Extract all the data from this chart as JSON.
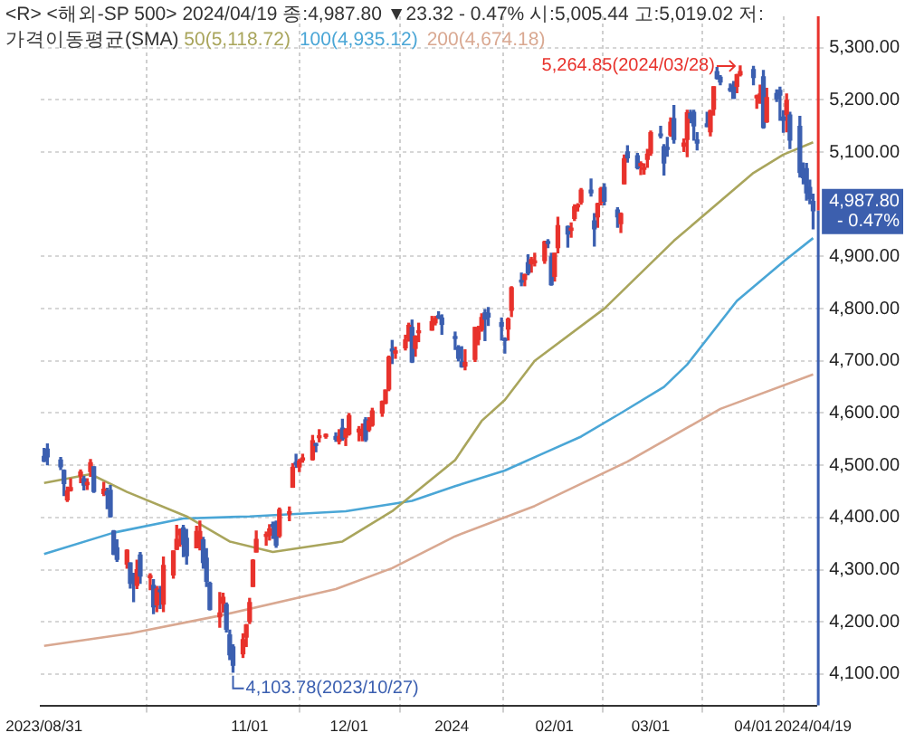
{
  "chart_data": {
    "type": "candlestick",
    "title": "<R> <해외-SP 500> 2024/04/19 종:4,987.80 ▼23.32 - 0.47% 시:5,005.44 고:5,019.02 저:",
    "subtitle": "가격이동평균(SMA)",
    "legend": "top left",
    "grid": true,
    "xlim": [
      "2023-08-30",
      "2024-04-20"
    ],
    "xticks": [
      {
        "value": "2023-08-31",
        "label": "2023/08/31"
      },
      {
        "value": "2023-11-01",
        "label": "11/01"
      },
      {
        "value": "2023-12-01",
        "label": "12/01"
      },
      {
        "value": "2024-01-01",
        "label": "2024"
      },
      {
        "value": "2024-02-01",
        "label": "02/01"
      },
      {
        "value": "2024-03-01",
        "label": "03/01"
      },
      {
        "value": "2024-04-01",
        "label": "04/01"
      },
      {
        "value": "2024-04-19",
        "label": "2024/04/19"
      }
    ],
    "ylim": [
      4040,
      5360
    ],
    "yticks": [
      {
        "value": 4100,
        "label": "4,100.00"
      },
      {
        "value": 4200,
        "label": "4,200.00"
      },
      {
        "value": 4300,
        "label": "4,300.00"
      },
      {
        "value": 4400,
        "label": "4,400.00"
      },
      {
        "value": 4500,
        "label": "4,500.00"
      },
      {
        "value": 4600,
        "label": "4,600.00"
      },
      {
        "value": 4700,
        "label": "4,700.00"
      },
      {
        "value": 4800,
        "label": "4,800.00"
      },
      {
        "value": 4900,
        "label": "4,900.00"
      },
      {
        "value": 5100,
        "label": "5,100.00"
      },
      {
        "value": 5200,
        "label": "5,200.00"
      },
      {
        "value": 5300,
        "label": "5,300.00"
      }
    ],
    "x": [
      "2023-08-31",
      "2023-09-01",
      "2023-09-05",
      "2023-09-06",
      "2023-09-07",
      "2023-09-08",
      "2023-09-11",
      "2023-09-12",
      "2023-09-13",
      "2023-09-14",
      "2023-09-15",
      "2023-09-18",
      "2023-09-19",
      "2023-09-20",
      "2023-09-21",
      "2023-09-22",
      "2023-09-25",
      "2023-09-26",
      "2023-09-27",
      "2023-09-28",
      "2023-09-29",
      "2023-10-02",
      "2023-10-03",
      "2023-10-04",
      "2023-10-05",
      "2023-10-06",
      "2023-10-09",
      "2023-10-10",
      "2023-10-11",
      "2023-10-12",
      "2023-10-13",
      "2023-10-16",
      "2023-10-17",
      "2023-10-18",
      "2023-10-19",
      "2023-10-20",
      "2023-10-23",
      "2023-10-24",
      "2023-10-25",
      "2023-10-26",
      "2023-10-27",
      "2023-10-30",
      "2023-10-31",
      "2023-11-01",
      "2023-11-02",
      "2023-11-03",
      "2023-11-06",
      "2023-11-07",
      "2023-11-08",
      "2023-11-09",
      "2023-11-10",
      "2023-11-13",
      "2023-11-14",
      "2023-11-15",
      "2023-11-16",
      "2023-11-17",
      "2023-11-20",
      "2023-11-21",
      "2023-11-22",
      "2023-11-24",
      "2023-11-27",
      "2023-11-28",
      "2023-11-29",
      "2023-11-30",
      "2023-12-01",
      "2023-12-04",
      "2023-12-05",
      "2023-12-06",
      "2023-12-07",
      "2023-12-08",
      "2023-12-11",
      "2023-12-12",
      "2023-12-13",
      "2023-12-14",
      "2023-12-15",
      "2023-12-18",
      "2023-12-19",
      "2023-12-20",
      "2023-12-21",
      "2023-12-22",
      "2023-12-26",
      "2023-12-27",
      "2023-12-28",
      "2023-12-29",
      "2024-01-02",
      "2024-01-03",
      "2024-01-04",
      "2024-01-05",
      "2024-01-08",
      "2024-01-09",
      "2024-01-10",
      "2024-01-11",
      "2024-01-12",
      "2024-01-16",
      "2024-01-17",
      "2024-01-18",
      "2024-01-19",
      "2024-01-22",
      "2024-01-23",
      "2024-01-24",
      "2024-01-25",
      "2024-01-26",
      "2024-01-29",
      "2024-01-30",
      "2024-01-31",
      "2024-02-01",
      "2024-02-02",
      "2024-02-05",
      "2024-02-06",
      "2024-02-07",
      "2024-02-08",
      "2024-02-09",
      "2024-02-12",
      "2024-02-13",
      "2024-02-14",
      "2024-02-15",
      "2024-02-16",
      "2024-02-20",
      "2024-02-21",
      "2024-02-22",
      "2024-02-23",
      "2024-02-26",
      "2024-02-27",
      "2024-02-28",
      "2024-02-29",
      "2024-03-01",
      "2024-03-04",
      "2024-03-05",
      "2024-03-06",
      "2024-03-07",
      "2024-03-08",
      "2024-03-11",
      "2024-03-12",
      "2024-03-13",
      "2024-03-14",
      "2024-03-15",
      "2024-03-18",
      "2024-03-19",
      "2024-03-20",
      "2024-03-21",
      "2024-03-22",
      "2024-03-25",
      "2024-03-26",
      "2024-03-27",
      "2024-03-28",
      "2024-04-01",
      "2024-04-02",
      "2024-04-03",
      "2024-04-04",
      "2024-04-05",
      "2024-04-08",
      "2024-04-09",
      "2024-04-10",
      "2024-04-11",
      "2024-04-12",
      "2024-04-15",
      "2024-04-16",
      "2024-04-17",
      "2024-04-18",
      "2024-04-19"
    ],
    "ohlc": [
      [
        4517,
        4532,
        4507,
        4508
      ],
      [
        4531,
        4541,
        4501,
        4516
      ],
      [
        4510,
        4515,
        4492,
        4497
      ],
      [
        4490,
        4491,
        4442,
        4465
      ],
      [
        4434,
        4458,
        4431,
        4451
      ],
      [
        4452,
        4474,
        4451,
        4457
      ],
      [
        4480,
        4491,
        4467,
        4487
      ],
      [
        4474,
        4479,
        4453,
        4462
      ],
      [
        4463,
        4474,
        4454,
        4467
      ],
      [
        4488,
        4511,
        4479,
        4505
      ],
      [
        4497,
        4497,
        4448,
        4450
      ],
      [
        4446,
        4467,
        4442,
        4454
      ],
      [
        4450,
        4456,
        4417,
        4444
      ],
      [
        4452,
        4461,
        4401,
        4402
      ],
      [
        4374,
        4375,
        4329,
        4330
      ],
      [
        4342,
        4357,
        4316,
        4320
      ],
      [
        4311,
        4338,
        4303,
        4337
      ],
      [
        4313,
        4313,
        4265,
        4274
      ],
      [
        4282,
        4293,
        4239,
        4274
      ],
      [
        4270,
        4318,
        4264,
        4300
      ],
      [
        4328,
        4333,
        4274,
        4288
      ],
      [
        4285,
        4292,
        4262,
        4288
      ],
      [
        4270,
        4281,
        4216,
        4229
      ],
      [
        4233,
        4268,
        4220,
        4263
      ],
      [
        4260,
        4268,
        4226,
        4258
      ],
      [
        4234,
        4324,
        4220,
        4308
      ],
      [
        4290,
        4336,
        4284,
        4336
      ],
      [
        4339,
        4385,
        4339,
        4358
      ],
      [
        4367,
        4378,
        4345,
        4376
      ],
      [
        4380,
        4385,
        4325,
        4349
      ],
      [
        4360,
        4377,
        4311,
        4327
      ],
      [
        4342,
        4383,
        4342,
        4373
      ],
      [
        4345,
        4393,
        4338,
        4373
      ],
      [
        4357,
        4362,
        4303,
        4314
      ],
      [
        4322,
        4340,
        4268,
        4278
      ],
      [
        4274,
        4276,
        4223,
        4224
      ],
      [
        4210,
        4256,
        4190,
        4217
      ],
      [
        4236,
        4255,
        4219,
        4247
      ],
      [
        4233,
        4236,
        4181,
        4186
      ],
      [
        4175,
        4184,
        4128,
        4137
      ],
      [
        4152,
        4156,
        4103.78,
        4117
      ],
      [
        4139,
        4177,
        4132,
        4166
      ],
      [
        4171,
        4195,
        4153,
        4194
      ],
      [
        4201,
        4245,
        4197,
        4237
      ],
      [
        4268,
        4319,
        4268,
        4318
      ],
      [
        4334,
        4374,
        4334,
        4358
      ],
      [
        4364,
        4372,
        4347,
        4365
      ],
      [
        4366,
        4386,
        4357,
        4378
      ],
      [
        4385,
        4391,
        4360,
        4383
      ],
      [
        4391,
        4393,
        4343,
        4347
      ],
      [
        4365,
        4418,
        4362,
        4415
      ],
      [
        4407,
        4420,
        4394,
        4411
      ],
      [
        4458,
        4503,
        4458,
        4496
      ],
      [
        4505,
        4521,
        4496,
        4502
      ],
      [
        4497,
        4511,
        4488,
        4508
      ],
      [
        4510,
        4521,
        4506,
        4514
      ],
      [
        4511,
        4557,
        4510,
        4547
      ],
      [
        4539,
        4542,
        4526,
        4538
      ],
      [
        4553,
        4568,
        4545,
        4556
      ],
      [
        4555,
        4560,
        4552,
        4559
      ],
      [
        4555,
        4562,
        4546,
        4550
      ],
      [
        4546,
        4568,
        4541,
        4555
      ],
      [
        4571,
        4588,
        4548,
        4551
      ],
      [
        4554,
        4570,
        4538,
        4568
      ],
      [
        4560,
        4599,
        4558,
        4595
      ],
      [
        4564,
        4574,
        4547,
        4569
      ],
      [
        4557,
        4579,
        4547,
        4567
      ],
      [
        4587,
        4591,
        4546,
        4549
      ],
      [
        4568,
        4591,
        4565,
        4585
      ],
      [
        4577,
        4609,
        4575,
        4604
      ],
      [
        4600,
        4623,
        4594,
        4622
      ],
      [
        4619,
        4644,
        4618,
        4644
      ],
      [
        4646,
        4709,
        4643,
        4707
      ],
      [
        4721,
        4739,
        4695,
        4719
      ],
      [
        4715,
        4726,
        4705,
        4719
      ],
      [
        4725,
        4749,
        4721,
        4740
      ],
      [
        4743,
        4772,
        4738,
        4768
      ],
      [
        4764,
        4778,
        4697,
        4698
      ],
      [
        4724,
        4748,
        4709,
        4747
      ],
      [
        4754,
        4772,
        4737,
        4755
      ],
      [
        4759,
        4785,
        4759,
        4775
      ],
      [
        4773,
        4785,
        4769,
        4781
      ],
      [
        4786,
        4794,
        4781,
        4783
      ],
      [
        4782,
        4788,
        4751,
        4770
      ],
      [
        4746,
        4755,
        4722,
        4743
      ],
      [
        4726,
        4729,
        4700,
        4705
      ],
      [
        4698,
        4727,
        4688,
        4689
      ],
      [
        4690,
        4721,
        4683,
        4697
      ],
      [
        4703,
        4764,
        4699,
        4764
      ],
      [
        4741,
        4766,
        4731,
        4757
      ],
      [
        4760,
        4790,
        4757,
        4783
      ],
      [
        4792,
        4798,
        4739,
        4780
      ],
      [
        4791,
        4802,
        4768,
        4784
      ],
      [
        4773,
        4782,
        4740,
        4766
      ],
      [
        4740,
        4744,
        4715,
        4739
      ],
      [
        4761,
        4782,
        4740,
        4780
      ],
      [
        4797,
        4842,
        4785,
        4840
      ],
      [
        4854,
        4868,
        4844,
        4851
      ],
      [
        4856,
        4866,
        4844,
        4865
      ],
      [
        4888,
        4903,
        4865,
        4868
      ],
      [
        4886,
        4898,
        4870,
        4894
      ],
      [
        4888,
        4906,
        4882,
        4891
      ],
      [
        4892,
        4929,
        4887,
        4928
      ],
      [
        4926,
        4932,
        4917,
        4925
      ],
      [
        4899,
        4906,
        4845,
        4846
      ],
      [
        4862,
        4906,
        4853,
        4906
      ],
      [
        4917,
        4975,
        4907,
        4959
      ],
      [
        4957,
        4958,
        4918,
        4943
      ],
      [
        4950,
        4964,
        4937,
        4954
      ],
      [
        4973,
        4999,
        4969,
        4995
      ],
      [
        4995,
        5001,
        4987,
        4998
      ],
      [
        5004,
        5030,
        5000,
        5027
      ],
      [
        5027,
        5048,
        5016,
        5022
      ],
      [
        4968,
        4982,
        4920,
        4953
      ],
      [
        4976,
        5002,
        4956,
        5001
      ],
      [
        5004,
        5032,
        4999,
        5030
      ],
      [
        5032,
        5039,
        4999,
        5006
      ],
      [
        4989,
        4993,
        4956,
        4976
      ],
      [
        4963,
        4983,
        4946,
        4982
      ],
      [
        5039,
        5094,
        5039,
        5087
      ],
      [
        5100,
        5112,
        5081,
        5089
      ],
      [
        5093,
        5097,
        5068,
        5070
      ],
      [
        5074,
        5081,
        5057,
        5078
      ],
      [
        5067,
        5077,
        5058,
        5070
      ],
      [
        5086,
        5105,
        5071,
        5096
      ],
      [
        5098,
        5140,
        5094,
        5137
      ],
      [
        5134,
        5149,
        5127,
        5131
      ],
      [
        5110,
        5114,
        5056,
        5079
      ],
      [
        5109,
        5128,
        5092,
        5105
      ],
      [
        5133,
        5165,
        5130,
        5157
      ],
      [
        5164,
        5189,
        5117,
        5124
      ],
      [
        5111,
        5125,
        5101,
        5117
      ],
      [
        5124,
        5180,
        5091,
        5175
      ],
      [
        5174,
        5180,
        5156,
        5165
      ],
      [
        5176,
        5180,
        5123,
        5150
      ],
      [
        5123,
        5137,
        5104,
        5117
      ],
      [
        5154,
        5176,
        5149,
        5149
      ],
      [
        5139,
        5180,
        5131,
        5179
      ],
      [
        5182,
        5225,
        5171,
        5225
      ],
      [
        5254,
        5262,
        5240,
        5241
      ],
      [
        5243,
        5246,
        5229,
        5234
      ],
      [
        5219,
        5230,
        5216,
        5218
      ],
      [
        5228,
        5235,
        5203,
        5203
      ],
      [
        5226,
        5249,
        5214,
        5248
      ],
      [
        5248,
        5264.85,
        5246,
        5254
      ],
      [
        5258,
        5264,
        5229,
        5243
      ],
      [
        5204,
        5209,
        5184,
        5205
      ],
      [
        5194,
        5228,
        5194,
        5211
      ],
      [
        5244,
        5256,
        5146,
        5147
      ],
      [
        5158,
        5222,
        5157,
        5204
      ],
      [
        5212,
        5219,
        5197,
        5202
      ],
      [
        5218,
        5224,
        5161,
        5209
      ],
      [
        5167,
        5179,
        5138,
        5161
      ],
      [
        5172,
        5211,
        5139,
        5199
      ],
      [
        5171,
        5176,
        5107,
        5123
      ],
      [
        5149,
        5168,
        5052,
        5061
      ],
      [
        5064,
        5079,
        5039,
        5051
      ],
      [
        5068,
        5078,
        5008,
        5022
      ],
      [
        5032,
        5046,
        5001,
        5011
      ],
      [
        5005.44,
        5019.02,
        4953,
        4987.8
      ]
    ],
    "colors": [
      "#3b5fb0",
      "#3b5fb0",
      "#3b5fb0",
      "#3b5fb0",
      "#e8322c",
      "#e8322c",
      "#e8322c",
      "#3b5fb0",
      "#e8322c",
      "#e8322c",
      "#3b5fb0",
      "#e8322c",
      "#3b5fb0",
      "#3b5fb0",
      "#3b5fb0",
      "#3b5fb0",
      "#e8322c",
      "#3b5fb0",
      "#3b5fb0",
      "#e8322c",
      "#3b5fb0",
      "#e8322c",
      "#3b5fb0",
      "#e8322c",
      "#3b5fb0",
      "#e8322c",
      "#e8322c",
      "#e8322c",
      "#e8322c",
      "#3b5fb0",
      "#3b5fb0",
      "#e8322c",
      "#e8322c",
      "#3b5fb0",
      "#3b5fb0",
      "#3b5fb0",
      "#e8322c",
      "#e8322c",
      "#3b5fb0",
      "#3b5fb0",
      "#3b5fb0",
      "#e8322c",
      "#e8322c",
      "#e8322c",
      "#e8322c",
      "#e8322c",
      "#e8322c",
      "#e8322c",
      "#3b5fb0",
      "#3b5fb0",
      "#e8322c",
      "#e8322c",
      "#e8322c",
      "#3b5fb0",
      "#e8322c",
      "#e8322c",
      "#e8322c",
      "#3b5fb0",
      "#e8322c",
      "#e8322c",
      "#3b5fb0",
      "#e8322c",
      "#3b5fb0",
      "#e8322c",
      "#e8322c",
      "#e8322c",
      "#e8322c",
      "#3b5fb0",
      "#e8322c",
      "#e8322c",
      "#e8322c",
      "#e8322c",
      "#e8322c",
      "#3b5fb0",
      "#e8322c",
      "#e8322c",
      "#e8322c",
      "#3b5fb0",
      "#e8322c",
      "#e8322c",
      "#e8322c",
      "#e8322c",
      "#3b5fb0",
      "#3b5fb0",
      "#3b5fb0",
      "#3b5fb0",
      "#3b5fb0",
      "#e8322c",
      "#e8322c",
      "#e8322c",
      "#e8322c",
      "#3b5fb0",
      "#3b5fb0",
      "#3b5fb0",
      "#3b5fb0",
      "#e8322c",
      "#e8322c",
      "#3b5fb0",
      "#e8322c",
      "#3b5fb0",
      "#e8322c",
      "#e8322c",
      "#e8322c",
      "#3b5fb0",
      "#3b5fb0",
      "#e8322c",
      "#e8322c",
      "#3b5fb0",
      "#e8322c",
      "#e8322c",
      "#e8322c",
      "#e8322c",
      "#3b5fb0",
      "#3b5fb0",
      "#e8322c",
      "#e8322c",
      "#3b5fb0",
      "#3b5fb0",
      "#e8322c",
      "#e8322c",
      "#3b5fb0",
      "#3b5fb0",
      "#e8322c",
      "#e8322c",
      "#e8322c",
      "#e8322c",
      "#3b5fb0",
      "#3b5fb0",
      "#3b5fb0",
      "#e8322c",
      "#3b5fb0",
      "#e8322c",
      "#e8322c",
      "#3b5fb0",
      "#3b5fb0",
      "#3b5fb0",
      "#3b5fb0",
      "#e8322c",
      "#e8322c",
      "#3b5fb0",
      "#3b5fb0",
      "#3b5fb0",
      "#3b5fb0",
      "#e8322c",
      "#e8322c",
      "#3b5fb0",
      "#e8322c",
      "#e8322c",
      "#3b5fb0",
      "#e8322c",
      "#3b5fb0",
      "#3b5fb0",
      "#3b5fb0",
      "#e8322c",
      "#3b5fb0",
      "#3b5fb0",
      "#3b5fb0",
      "#3b5fb0",
      "#3b5fb0",
      "#3b5fb0"
    ],
    "series": [
      {
        "type": "line",
        "name": "50(5,118.72)",
        "color": "#a9a55c",
        "x": [
          "2023-08-31",
          "2023-09-14",
          "2023-09-25",
          "2023-10-13",
          "2023-10-26",
          "2023-11-08",
          "2023-11-29",
          "2023-12-14",
          "2024-01-02",
          "2024-01-10",
          "2024-01-17",
          "2024-01-26",
          "2024-02-16",
          "2024-03-08",
          "2024-04-01",
          "2024-04-10",
          "2024-04-19"
        ],
        "values": [
          4466,
          4483,
          4449,
          4402,
          4354,
          4334,
          4354,
          4412,
          4510,
          4585,
          4625,
          4700,
          4800,
          4930,
          5060,
          5095,
          5118.72
        ]
      },
      {
        "type": "line",
        "name": "100(4,935.12)",
        "color": "#4aa6d6",
        "x": [
          "2023-08-31",
          "2023-09-21",
          "2023-10-12",
          "2023-11-01",
          "2023-11-30",
          "2023-12-20",
          "2024-01-02",
          "2024-01-17",
          "2024-01-29",
          "2024-02-09",
          "2024-02-21",
          "2024-03-05",
          "2024-03-12",
          "2024-03-27",
          "2024-04-10",
          "2024-04-19"
        ],
        "values": [
          4330,
          4371,
          4398,
          4402,
          4412,
          4432,
          4460,
          4490,
          4524,
          4555,
          4600,
          4650,
          4693,
          4815,
          4890,
          4935.12
        ]
      },
      {
        "type": "line",
        "name": "200(4,674.18)",
        "color": "#d9a891",
        "x": [
          "2023-08-31",
          "2023-09-26",
          "2023-10-23",
          "2023-11-27",
          "2023-12-14",
          "2024-01-02",
          "2024-01-26",
          "2024-02-23",
          "2024-03-22",
          "2024-04-19"
        ],
        "values": [
          4154,
          4178,
          4212,
          4263,
          4303,
          4364,
          4422,
          4507,
          4608,
          4674.18
        ]
      }
    ],
    "annotations": [
      {
        "text": "5,264.85(2024/03/28)",
        "x": "2024-03-28",
        "y": 5264.85
      },
      {
        "text": "4,103.78(2023/10/27)",
        "x": "2023-10-27",
        "y": 4103.78
      },
      {
        "text": "4,987.80",
        "x": "2024-04-19",
        "y": 4987.8
      },
      {
        "text": "- 0.47%",
        "x": "2024-04-19",
        "y": 4987.8
      }
    ]
  }
}
